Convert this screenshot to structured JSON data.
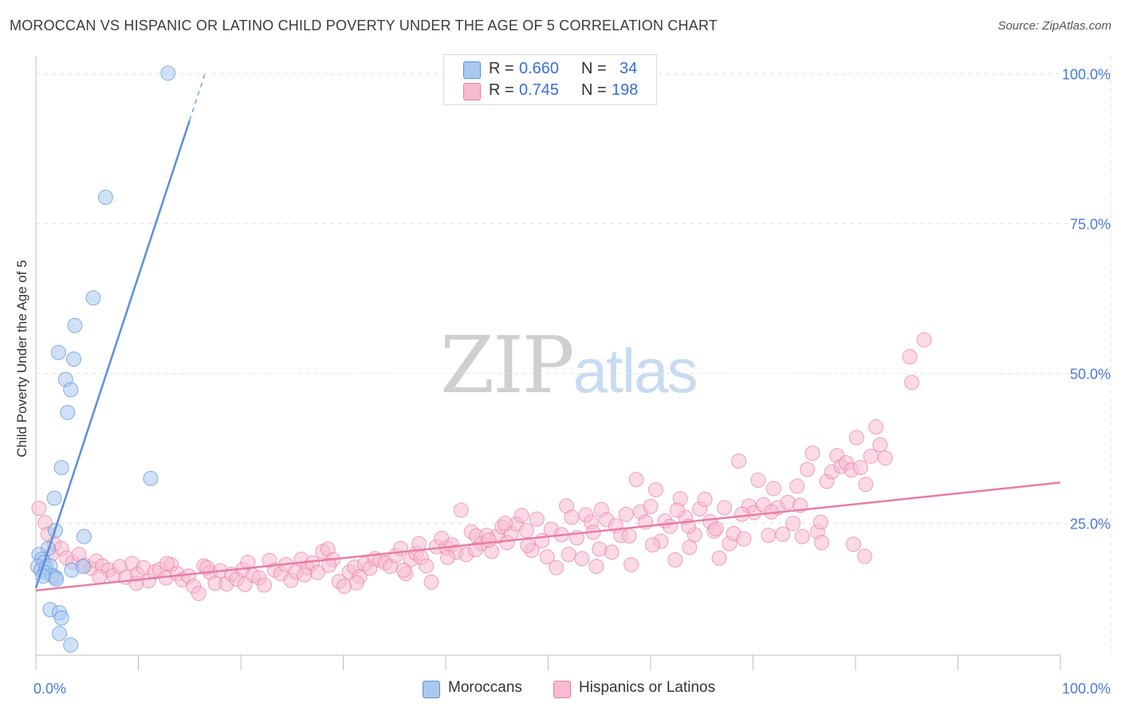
{
  "title": "MOROCCAN VS HISPANIC OR LATINO CHILD POVERTY UNDER THE AGE OF 5 CORRELATION CHART",
  "source": "Source: ZipAtlas.com",
  "watermark": {
    "zip": "ZIP",
    "atlas": "atlas"
  },
  "legend": {
    "rows": [
      {
        "r_label": "R =",
        "r_value": "0.660",
        "n_label": "N =",
        "n_value": "34",
        "color": "#a9c8f0",
        "stroke": "#5b8fd9"
      },
      {
        "r_label": "R =",
        "r_value": "0.745",
        "n_label": "N =",
        "n_value": "198",
        "color": "#f7bcd0",
        "stroke": "#e57fa0"
      }
    ]
  },
  "bottom_legend": [
    {
      "label": "Moroccans",
      "color": "#a9c8f0",
      "stroke": "#5b8fd9"
    },
    {
      "label": "Hispanics or Latinos",
      "color": "#f7bcd0",
      "stroke": "#e57fa0"
    }
  ],
  "chart_data": {
    "type": "scatter",
    "title": "MOROCCAN VS HISPANIC OR LATINO CHILD POVERTY UNDER THE AGE OF 5 CORRELATION CHART",
    "xlabel": "",
    "ylabel": "Child Poverty Under the Age of 5",
    "xlim": [
      0,
      100
    ],
    "ylim": [
      3,
      103
    ],
    "x_ticks": [
      {
        "value": 0,
        "label": "0.0%"
      },
      {
        "value": 100,
        "label": "100.0%"
      }
    ],
    "x_minor_ticks": [
      0,
      10,
      20,
      30,
      40,
      50,
      60,
      70,
      80,
      90,
      100
    ],
    "y_ticks": [
      {
        "value": 25,
        "label": "25.0%"
      },
      {
        "value": 50,
        "label": "50.0%"
      },
      {
        "value": 75,
        "label": "75.0%"
      },
      {
        "value": 100,
        "label": "100.0%"
      }
    ],
    "grid": true,
    "legend_position": "top-center",
    "series": [
      {
        "name": "Moroccans",
        "color": "#5b8fd9",
        "fill": "#a9c8f0",
        "points": [
          [
            12.9,
            100.1
          ],
          [
            6.8,
            79.4
          ],
          [
            5.6,
            62.6
          ],
          [
            3.8,
            58.0
          ],
          [
            2.2,
            53.5
          ],
          [
            3.7,
            52.4
          ],
          [
            2.9,
            49.0
          ],
          [
            3.4,
            47.3
          ],
          [
            3.1,
            43.5
          ],
          [
            2.5,
            34.3
          ],
          [
            11.2,
            32.5
          ],
          [
            1.8,
            29.2
          ],
          [
            1.9,
            23.8
          ],
          [
            4.7,
            22.8
          ],
          [
            1.2,
            20.8
          ],
          [
            0.3,
            19.8
          ],
          [
            0.6,
            19.0
          ],
          [
            0.8,
            18.5
          ],
          [
            0.2,
            17.8
          ],
          [
            0.5,
            17.2
          ],
          [
            1.0,
            17.5
          ],
          [
            1.4,
            17.9
          ],
          [
            0.9,
            16.8
          ],
          [
            1.6,
            16.3
          ],
          [
            1.9,
            16.0
          ],
          [
            2.0,
            15.7
          ],
          [
            3.5,
            17.2
          ],
          [
            4.6,
            17.8
          ],
          [
            1.4,
            10.6
          ],
          [
            2.3,
            10.1
          ],
          [
            2.5,
            9.2
          ],
          [
            2.3,
            6.6
          ],
          [
            3.4,
            4.7
          ],
          [
            0.7,
            16.2
          ]
        ]
      },
      {
        "name": "Hispanics or Latinos",
        "color": "#e57fa0",
        "fill": "#f7bcd0",
        "points": [
          [
            0.3,
            27.5
          ],
          [
            0.9,
            25.1
          ],
          [
            1.2,
            23.2
          ],
          [
            1.8,
            21.5
          ],
          [
            2.5,
            20.8
          ],
          [
            3.0,
            19.2
          ],
          [
            3.6,
            18.5
          ],
          [
            4.2,
            19.8
          ],
          [
            4.8,
            18.0
          ],
          [
            5.4,
            17.5
          ],
          [
            5.9,
            18.7
          ],
          [
            6.5,
            17.9
          ],
          [
            7.1,
            17.2
          ],
          [
            7.6,
            16.3
          ],
          [
            8.2,
            17.8
          ],
          [
            8.8,
            16.0
          ],
          [
            9.4,
            18.3
          ],
          [
            9.9,
            16.5
          ],
          [
            10.5,
            17.6
          ],
          [
            11.0,
            15.4
          ],
          [
            11.6,
            16.9
          ],
          [
            12.1,
            17.3
          ],
          [
            12.7,
            15.9
          ],
          [
            13.2,
            18.1
          ],
          [
            13.8,
            16.6
          ],
          [
            14.3,
            15.6
          ],
          [
            14.9,
            16.2
          ],
          [
            15.4,
            14.5
          ],
          [
            15.9,
            13.3
          ],
          [
            16.4,
            17.9
          ],
          [
            17.0,
            16.8
          ],
          [
            17.5,
            15.0
          ],
          [
            18.0,
            17.1
          ],
          [
            18.6,
            14.9
          ],
          [
            19.1,
            16.5
          ],
          [
            19.6,
            15.7
          ],
          [
            20.2,
            17.3
          ],
          [
            20.7,
            18.5
          ],
          [
            21.2,
            16.3
          ],
          [
            21.8,
            15.9
          ],
          [
            22.3,
            14.7
          ],
          [
            22.8,
            18.8
          ],
          [
            23.3,
            17.2
          ],
          [
            23.9,
            16.6
          ],
          [
            24.4,
            18.1
          ],
          [
            24.9,
            15.5
          ],
          [
            25.4,
            16.9
          ],
          [
            25.9,
            19.0
          ],
          [
            26.5,
            17.6
          ],
          [
            27.0,
            18.4
          ],
          [
            27.5,
            16.8
          ],
          [
            28.0,
            20.3
          ],
          [
            28.5,
            20.7
          ],
          [
            29.0,
            18.9
          ],
          [
            29.6,
            15.3
          ],
          [
            30.1,
            14.5
          ],
          [
            30.6,
            16.9
          ],
          [
            31.1,
            17.7
          ],
          [
            31.6,
            16.1
          ],
          [
            32.1,
            18.2
          ],
          [
            32.6,
            17.5
          ],
          [
            33.1,
            19.1
          ],
          [
            33.6,
            18.8
          ],
          [
            34.1,
            18.4
          ],
          [
            34.6,
            17.8
          ],
          [
            35.1,
            19.6
          ],
          [
            35.6,
            20.8
          ],
          [
            36.1,
            16.6
          ],
          [
            36.6,
            18.9
          ],
          [
            37.1,
            20.0
          ],
          [
            37.6,
            19.3
          ],
          [
            38.1,
            17.9
          ],
          [
            38.6,
            15.2
          ],
          [
            39.1,
            21.1
          ],
          [
            39.6,
            22.5
          ],
          [
            40.1,
            20.9
          ],
          [
            40.6,
            21.4
          ],
          [
            41.0,
            20.2
          ],
          [
            41.5,
            27.2
          ],
          [
            42.0,
            19.8
          ],
          [
            42.5,
            23.6
          ],
          [
            43.0,
            22.9
          ],
          [
            43.5,
            21.6
          ],
          [
            44.0,
            23.0
          ],
          [
            44.5,
            20.3
          ],
          [
            45.0,
            22.8
          ],
          [
            45.5,
            24.4
          ],
          [
            46.0,
            21.8
          ],
          [
            46.4,
            23.3
          ],
          [
            46.9,
            24.9
          ],
          [
            47.4,
            26.3
          ],
          [
            47.9,
            23.8
          ],
          [
            48.4,
            20.5
          ],
          [
            48.9,
            25.7
          ],
          [
            49.4,
            22.1
          ],
          [
            49.9,
            19.4
          ],
          [
            50.3,
            24.0
          ],
          [
            50.8,
            17.6
          ],
          [
            51.3,
            23.1
          ],
          [
            51.8,
            27.9
          ],
          [
            52.3,
            26.0
          ],
          [
            52.8,
            22.6
          ],
          [
            53.3,
            19.1
          ],
          [
            53.7,
            26.4
          ],
          [
            54.2,
            25.2
          ],
          [
            54.7,
            17.8
          ],
          [
            55.2,
            27.3
          ],
          [
            55.7,
            25.6
          ],
          [
            56.2,
            20.2
          ],
          [
            56.6,
            24.6
          ],
          [
            57.1,
            23.0
          ],
          [
            57.6,
            26.5
          ],
          [
            58.1,
            18.1
          ],
          [
            58.6,
            32.3
          ],
          [
            59.0,
            26.9
          ],
          [
            59.5,
            25.2
          ],
          [
            60.0,
            27.8
          ],
          [
            60.5,
            30.6
          ],
          [
            61.0,
            22.0
          ],
          [
            61.4,
            25.4
          ],
          [
            61.9,
            24.5
          ],
          [
            62.4,
            18.9
          ],
          [
            62.9,
            29.1
          ],
          [
            63.4,
            26.0
          ],
          [
            63.8,
            21.0
          ],
          [
            64.3,
            23.1
          ],
          [
            64.8,
            27.4
          ],
          [
            65.3,
            29.0
          ],
          [
            65.8,
            25.3
          ],
          [
            66.2,
            23.7
          ],
          [
            66.7,
            19.2
          ],
          [
            67.2,
            27.6
          ],
          [
            67.7,
            21.6
          ],
          [
            68.1,
            23.3
          ],
          [
            68.6,
            35.4
          ],
          [
            69.1,
            22.4
          ],
          [
            69.6,
            27.9
          ],
          [
            70.1,
            26.8
          ],
          [
            70.5,
            32.2
          ],
          [
            71.0,
            28.1
          ],
          [
            71.5,
            23.0
          ],
          [
            72.0,
            30.8
          ],
          [
            72.4,
            27.6
          ],
          [
            72.9,
            23.2
          ],
          [
            73.4,
            28.5
          ],
          [
            73.9,
            25.0
          ],
          [
            74.3,
            31.2
          ],
          [
            74.8,
            22.8
          ],
          [
            75.3,
            34.0
          ],
          [
            75.8,
            36.7
          ],
          [
            76.3,
            23.6
          ],
          [
            76.7,
            21.8
          ],
          [
            77.2,
            32.0
          ],
          [
            77.7,
            33.6
          ],
          [
            78.2,
            36.3
          ],
          [
            78.6,
            34.5
          ],
          [
            79.1,
            35.1
          ],
          [
            79.6,
            33.9
          ],
          [
            80.1,
            39.3
          ],
          [
            80.5,
            34.3
          ],
          [
            81.0,
            31.5
          ],
          [
            81.5,
            36.2
          ],
          [
            82.0,
            41.1
          ],
          [
            82.4,
            38.1
          ],
          [
            82.9,
            35.9
          ],
          [
            85.3,
            52.8
          ],
          [
            85.5,
            48.5
          ],
          [
            86.7,
            55.6
          ],
          [
            12.8,
            18.3
          ],
          [
            28.6,
            18.0
          ],
          [
            40.2,
            19.3
          ],
          [
            44.2,
            22.2
          ],
          [
            52.0,
            19.8
          ],
          [
            57.9,
            22.9
          ],
          [
            63.7,
            24.5
          ],
          [
            68.9,
            26.5
          ],
          [
            74.6,
            28.0
          ],
          [
            79.8,
            21.5
          ],
          [
            1.5,
            19.8
          ],
          [
            6.2,
            16.1
          ],
          [
            9.8,
            15.0
          ],
          [
            16.7,
            17.6
          ],
          [
            20.4,
            14.8
          ],
          [
            26.2,
            16.4
          ],
          [
            31.3,
            15.1
          ],
          [
            35.9,
            17.2
          ],
          [
            42.9,
            20.6
          ],
          [
            48.0,
            21.3
          ],
          [
            55.0,
            20.7
          ],
          [
            60.2,
            21.4
          ],
          [
            66.4,
            24.1
          ],
          [
            71.8,
            26.9
          ],
          [
            76.6,
            25.2
          ],
          [
            80.9,
            19.5
          ],
          [
            37.4,
            21.6
          ],
          [
            45.8,
            25.0
          ],
          [
            54.4,
            23.5
          ],
          [
            62.6,
            27.2
          ]
        ]
      }
    ],
    "trendlines": [
      {
        "series": "Moroccans",
        "x": [
          0.0,
          16.5
        ],
        "y": [
          14.2,
          100.0
        ],
        "solid_until_x": 15.0
      },
      {
        "series": "Hispanics or Latinos",
        "x": [
          0.0,
          100.0
        ],
        "y": [
          13.8,
          31.8
        ]
      }
    ]
  }
}
